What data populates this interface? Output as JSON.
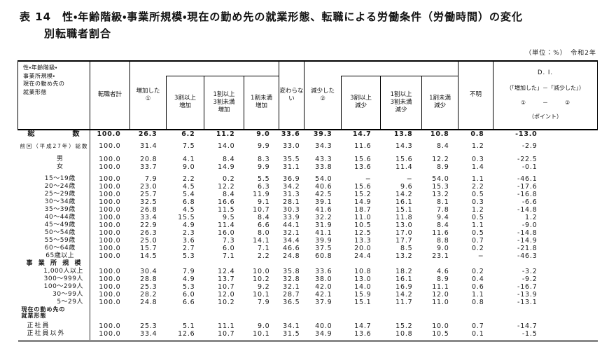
{
  "title": {
    "line1": "表 14　性・年齢階級・事業所規模・現在の勤め先の就業形態、転職による労働条件（労働時間）の変化",
    "line2": "別転職者割合"
  },
  "unit_note": "（単位：%）　令和2年",
  "table": {
    "stub_header": "性・年齢階級・\n事業所規模・\n現在の勤め先の\n就業形態",
    "columns": {
      "total": "転職者計",
      "increased": "増加した\n①",
      "inc_30plus": "3割以上\n増加",
      "inc_10to30": "1割以上\n3割未満\n増加",
      "inc_under10": "1割未満\n増加",
      "unchanged": "変わらな\nい",
      "decreased": "減少した\n②",
      "dec_30plus": "3割以上\n減少",
      "dec_10to30": "1割以上\n3割未満\n減少",
      "dec_under10": "1割未満\n減少",
      "unknown": "不明",
      "di_line1": "D. I.",
      "di_line2": "（「増加した」－「減少した」）",
      "di_line3": "①　　　－　　　②",
      "di_line4": "（ポイント）"
    },
    "rows": [
      {
        "label": "総数",
        "style": "spread",
        "bold": true,
        "values": [
          "100.0",
          "26.3",
          "6.2",
          "11.2",
          "9.0",
          "33.6",
          "39.3",
          "14.7",
          "13.8",
          "10.8",
          "0.8",
          "-13.0"
        ]
      },
      {
        "label": "前回（平成27年）総数",
        "style": "prev",
        "gap": 6,
        "values": [
          "100.0",
          "31.4",
          "7.5",
          "14.0",
          "9.9",
          "33.0",
          "34.3",
          "11.6",
          "14.3",
          "8.4",
          "1.2",
          "-2.9"
        ]
      },
      {
        "label": "男",
        "style": "center",
        "gap": 8,
        "values": [
          "100.0",
          "20.8",
          "4.1",
          "8.4",
          "8.3",
          "35.5",
          "43.3",
          "15.6",
          "15.6",
          "12.2",
          "0.3",
          "-22.5"
        ]
      },
      {
        "label": "女",
        "style": "center",
        "values": [
          "100.0",
          "33.7",
          "9.0",
          "14.9",
          "9.9",
          "31.1",
          "33.8",
          "13.6",
          "11.4",
          "8.9",
          "1.4",
          "-0.1"
        ]
      },
      {
        "label": "15〜19歳",
        "style": "center",
        "gap": 6,
        "values": [
          "100.0",
          "7.9",
          "2.2",
          "0.2",
          "5.5",
          "36.9",
          "54.0",
          "−",
          "−",
          "54.0",
          "1.1",
          "-46.1"
        ]
      },
      {
        "label": "20〜24歳",
        "style": "center",
        "values": [
          "100.0",
          "23.0",
          "4.5",
          "12.2",
          "6.3",
          "34.2",
          "40.6",
          "15.6",
          "9.6",
          "15.3",
          "2.2",
          "-17.6"
        ]
      },
      {
        "label": "25〜29歳",
        "style": "center",
        "values": [
          "100.0",
          "25.7",
          "5.4",
          "8.4",
          "11.9",
          "31.3",
          "42.5",
          "15.2",
          "14.2",
          "13.2",
          "0.5",
          "-16.8"
        ]
      },
      {
        "label": "30〜34歳",
        "style": "center",
        "values": [
          "100.0",
          "32.5",
          "6.8",
          "16.6",
          "9.1",
          "28.1",
          "39.1",
          "14.9",
          "16.1",
          "8.1",
          "0.3",
          "-6.6"
        ]
      },
      {
        "label": "35〜39歳",
        "style": "center",
        "values": [
          "100.0",
          "26.8",
          "4.5",
          "11.5",
          "10.7",
          "30.3",
          "41.6",
          "18.7",
          "15.1",
          "7.8",
          "1.2",
          "-14.8"
        ]
      },
      {
        "label": "40〜44歳",
        "style": "center",
        "values": [
          "100.0",
          "33.4",
          "15.5",
          "9.5",
          "8.4",
          "33.9",
          "32.2",
          "11.0",
          "11.8",
          "9.4",
          "0.5",
          "1.2"
        ]
      },
      {
        "label": "45〜49歳",
        "style": "center",
        "values": [
          "100.0",
          "22.9",
          "4.9",
          "11.4",
          "6.6",
          "44.1",
          "31.9",
          "10.5",
          "13.0",
          "8.4",
          "1.1",
          "-9.0"
        ]
      },
      {
        "label": "50〜54歳",
        "style": "center",
        "values": [
          "100.0",
          "26.3",
          "2.3",
          "16.0",
          "8.0",
          "32.1",
          "41.1",
          "12.5",
          "17.0",
          "11.6",
          "0.5",
          "-14.8"
        ]
      },
      {
        "label": "55〜59歳",
        "style": "center",
        "values": [
          "100.0",
          "25.0",
          "3.6",
          "7.3",
          "14.1",
          "34.4",
          "39.9",
          "13.3",
          "17.7",
          "8.8",
          "0.7",
          "-14.9"
        ]
      },
      {
        "label": "60〜64歳",
        "style": "center",
        "values": [
          "100.0",
          "15.7",
          "2.7",
          "6.0",
          "7.1",
          "46.6",
          "37.5",
          "20.0",
          "8.5",
          "9.0",
          "0.2",
          "-21.8"
        ]
      },
      {
        "label": "65歳以上",
        "style": "center",
        "values": [
          "100.0",
          "14.5",
          "5.3",
          "7.1",
          "2.2",
          "24.8",
          "60.8",
          "24.4",
          "13.2",
          "23.1",
          "−",
          "-46.3"
        ]
      },
      {
        "label": "事業所規模",
        "style": "section",
        "values": [
          "",
          "",
          "",
          "",
          "",
          "",
          "",
          "",
          "",
          "",
          "",
          ""
        ]
      },
      {
        "label": "1,000人以上",
        "style": "right",
        "values": [
          "100.0",
          "30.4",
          "7.9",
          "12.4",
          "10.0",
          "35.8",
          "33.6",
          "10.8",
          "18.2",
          "4.6",
          "0.2",
          "-3.2"
        ]
      },
      {
        "label": "300〜999人",
        "style": "right",
        "values": [
          "100.0",
          "28.8",
          "4.9",
          "13.7",
          "10.2",
          "32.8",
          "38.0",
          "13.0",
          "16.1",
          "8.9",
          "0.4",
          "-9.2"
        ]
      },
      {
        "label": "100〜299人",
        "style": "right",
        "values": [
          "100.0",
          "25.3",
          "5.3",
          "10.7",
          "9.2",
          "32.1",
          "42.0",
          "14.0",
          "16.9",
          "11.1",
          "0.6",
          "-16.7"
        ]
      },
      {
        "label": "30〜99人",
        "style": "right",
        "values": [
          "100.0",
          "28.2",
          "6.0",
          "12.0",
          "10.1",
          "28.7",
          "42.1",
          "15.9",
          "14.2",
          "12.0",
          "1.1",
          "-13.9"
        ]
      },
      {
        "label": "5〜29人",
        "style": "right",
        "values": [
          "100.0",
          "24.8",
          "6.6",
          "10.2",
          "7.9",
          "36.5",
          "37.9",
          "15.1",
          "11.7",
          "11.0",
          "0.8",
          "-13.1"
        ]
      },
      {
        "label": "現在の勤め先の\n就業形態",
        "style": "section2",
        "values": [
          "",
          "",
          "",
          "",
          "",
          "",
          "",
          "",
          "",
          "",
          "",
          ""
        ]
      },
      {
        "label": "正社員",
        "style": "indent",
        "gap": 4,
        "values": [
          "100.0",
          "25.3",
          "5.1",
          "11.1",
          "9.0",
          "34.1",
          "40.0",
          "14.7",
          "15.2",
          "10.0",
          "0.7",
          "-14.7"
        ]
      },
      {
        "label": "正社員以外",
        "style": "indent",
        "values": [
          "100.0",
          "33.4",
          "12.6",
          "10.7",
          "10.1",
          "31.5",
          "34.9",
          "13.6",
          "10.8",
          "10.5",
          "0.1",
          "-1.5"
        ]
      }
    ]
  }
}
